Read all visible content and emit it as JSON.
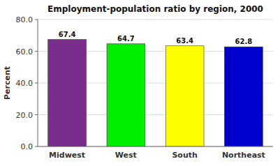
{
  "chart_data": {
    "type": "bar",
    "title": "Employment-population ratio by region, 2000",
    "categories": [
      "Midwest",
      "West",
      "South",
      "Northeast"
    ],
    "values": [
      67.4,
      64.7,
      63.4,
      62.8
    ],
    "colors": [
      "#7B2D8B",
      "#00EE00",
      "#FFFF00",
      "#0000CC"
    ],
    "ylabel": "Percent",
    "ylim": [
      0,
      80
    ],
    "yticks": [
      {
        "value": 0.0,
        "label": "0.0"
      },
      {
        "value": 20.0,
        "label": "20.0"
      },
      {
        "value": 40.0,
        "label": "40.0"
      },
      {
        "value": 60.0,
        "label": "60.0"
      },
      {
        "value": 80.0,
        "label": "80.0"
      }
    ],
    "grid": true,
    "data_labels": true
  }
}
